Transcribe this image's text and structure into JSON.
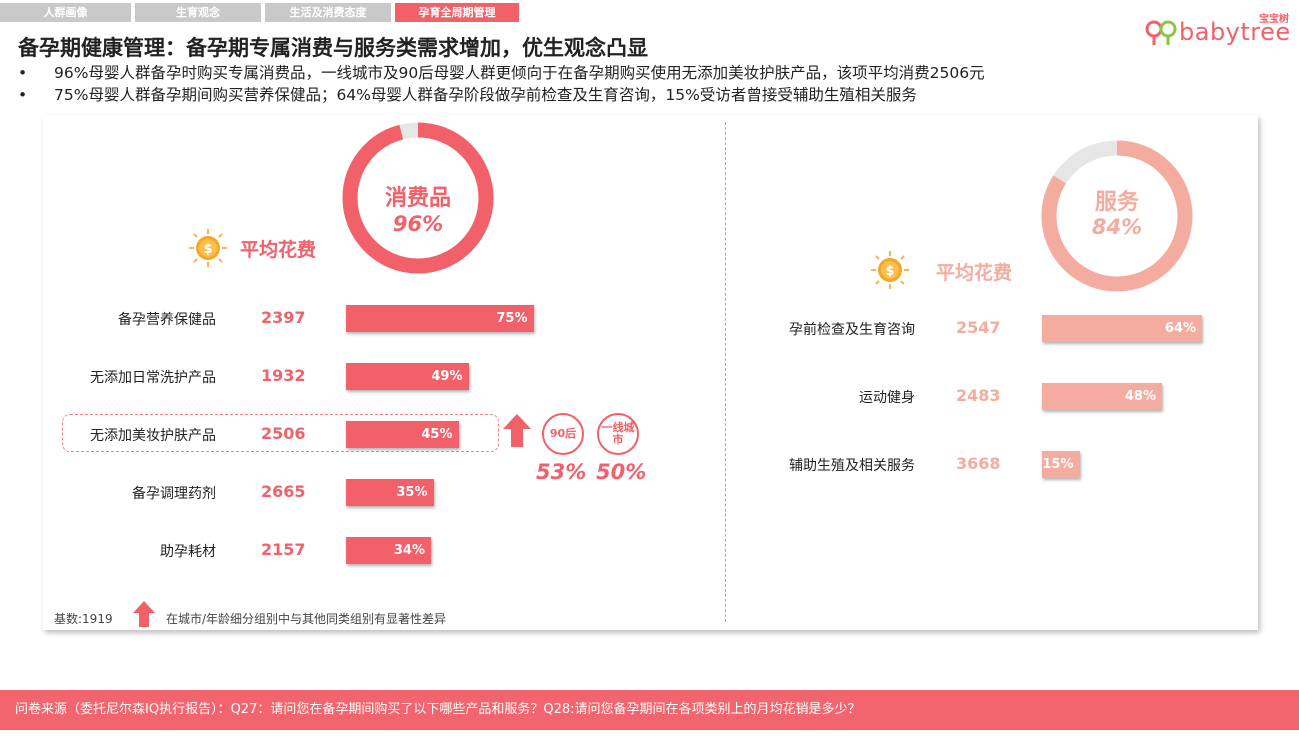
{
  "tabs": [
    "人群画像",
    "生育观念",
    "生活及消费态度",
    "孕育全周期管理"
  ],
  "logo": {
    "sub": "宝宝树",
    "word": "babytree"
  },
  "title": "备孕期健康管理：备孕期专属消费与服务类需求增加，优生观念凸显",
  "bullets": [
    "96%母婴人群备孕时购买专属消费品，一线城市及90后母婴人群更倾向于在备孕期购买使用无添加美妆护肤产品，该项平均消费2506元",
    "75%母婴人群备孕期间购买营养保健品；64%母婴人群备孕阶段做孕前检查及生育咨询，15%受访者曾接受辅助生殖相关服务"
  ],
  "colors": {
    "accent": "#f2606a",
    "accent_light": "#f5aca0",
    "ring_gray": "#e6e6e6"
  },
  "chart_data": [
    {
      "type": "bar",
      "ring": {
        "label": "消费品",
        "value_label": "96%",
        "value": 96
      },
      "avg_title": "平均花费",
      "categories": [
        "备孕营养保健品",
        "无添加日常洗护产品",
        "无添加美妆护肤产品",
        "备孕调理药剂",
        "助孕耗材"
      ],
      "spend": [
        "2397",
        "1932",
        "2506",
        "2665",
        "2157"
      ],
      "values": [
        75,
        49,
        45,
        35,
        34
      ],
      "value_labels": [
        "75%",
        "49%",
        "45%",
        "35%",
        "34%"
      ],
      "highlight": {
        "category": "无添加美妆护肤产品",
        "groups": [
          "90后",
          "一线城市"
        ],
        "group_values": [
          53,
          50
        ],
        "group_value_labels": [
          "53%",
          "50%"
        ]
      }
    },
    {
      "type": "bar",
      "ring": {
        "label": "服务",
        "value_label": "84%",
        "value": 84
      },
      "avg_title": "平均花费",
      "categories": [
        "孕前检查及生育咨询",
        "运动健身",
        "辅助生殖及相关服务"
      ],
      "spend": [
        "2547",
        "2483",
        "3668"
      ],
      "values": [
        64,
        48,
        15
      ],
      "value_labels": [
        "64%",
        "48%",
        "15%"
      ]
    }
  ],
  "note": {
    "base": "基数:1919",
    "legend": "在城市/年龄细分组别中与其他同类组别有显著性差异"
  },
  "footer": "问卷来源（委托尼尔森IQ执行报告）：Q27：请问您在备孕期间购买了以下哪些产品和服务？Q28:请问您备孕期间在各项类别上的月均花销是多少？"
}
